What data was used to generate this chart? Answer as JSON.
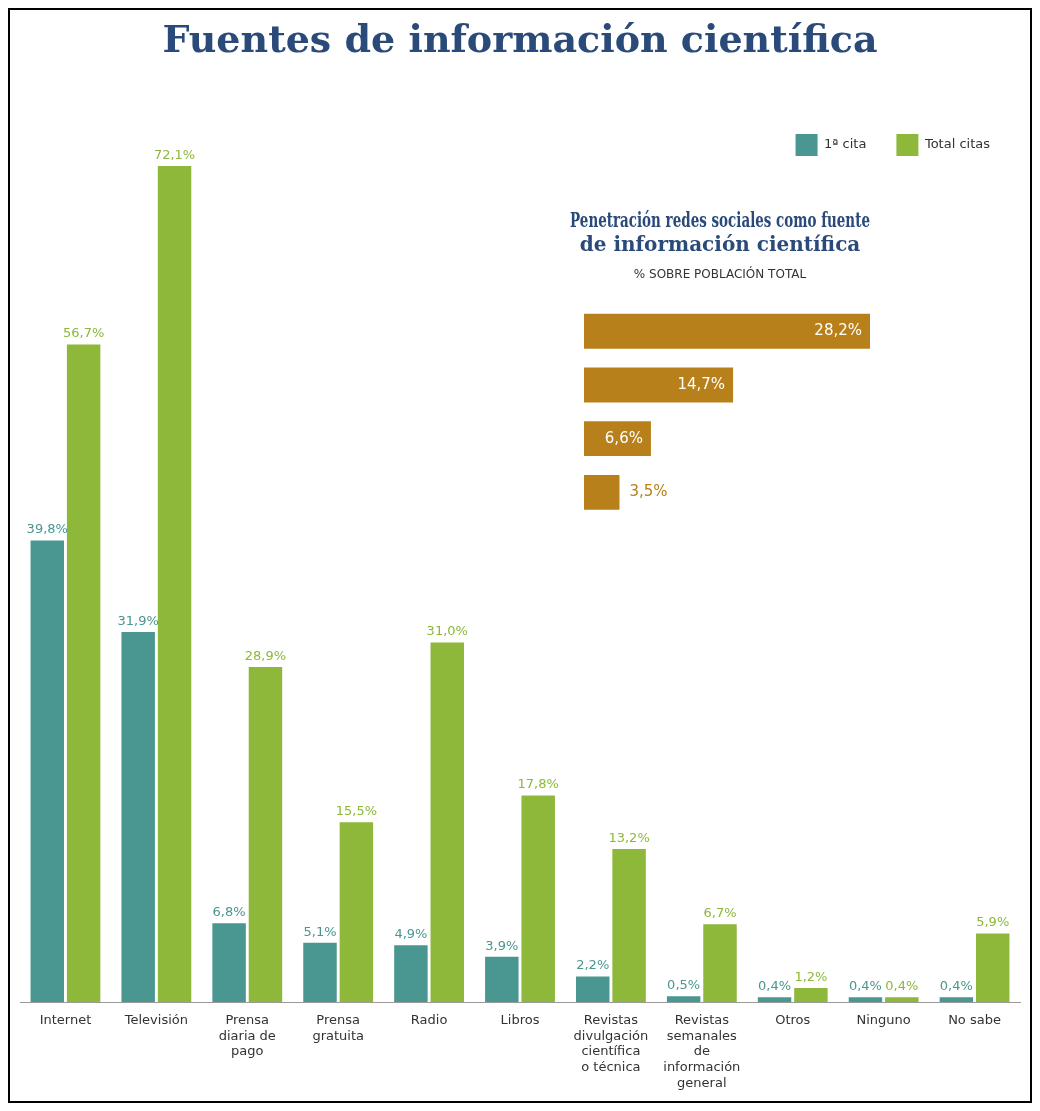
{
  "chart_data": [
    {
      "type": "bar",
      "title": "Fuentes de información científica",
      "categories": [
        "Internet",
        "Televisión",
        "Prensa diaria de pago",
        "Prensa gratuita",
        "Radio",
        "Libros",
        "Revistas divulgación científica o técnica",
        "Revistas semanales de información general",
        "Otros",
        "Ninguno",
        "No sabe"
      ],
      "series": [
        {
          "name": "1ª cita",
          "color": "#4a9690",
          "values": [
            39.8,
            31.9,
            6.8,
            5.1,
            4.9,
            3.9,
            2.2,
            0.5,
            0.4,
            0.4,
            0.4
          ],
          "value_labels": [
            "39,8%",
            "31,9%",
            "6,8%",
            "5,1%",
            "4,9%",
            "3,9%",
            "2,2%",
            "0,5%",
            "0,4%",
            "0,4%",
            "0,4%"
          ]
        },
        {
          "name": "Total citas",
          "color": "#8db83a",
          "values": [
            56.7,
            72.1,
            28.9,
            15.5,
            31.0,
            17.8,
            13.2,
            6.7,
            1.2,
            0.4,
            5.9
          ],
          "value_labels": [
            "56,7%",
            "72,1%",
            "28,9%",
            "15,5%",
            "31,0%",
            "17,8%",
            "13,2%",
            "6,7%",
            "1,2%",
            "0,4%",
            "5,9%"
          ]
        }
      ],
      "legend": "top right"
    },
    {
      "type": "bar",
      "orientation": "horizontal",
      "title": "Penetración redes sociales como fuente de información científica",
      "subtitle": "% SOBRE POBLACIÓN TOTAL",
      "categories": [
        null,
        null,
        null,
        null
      ],
      "values": [
        28.2,
        14.7,
        6.6,
        3.5
      ],
      "value_labels": [
        "28,2%",
        "14,7%",
        "6,6%",
        "3,5%"
      ],
      "color": "#b8801a"
    }
  ]
}
